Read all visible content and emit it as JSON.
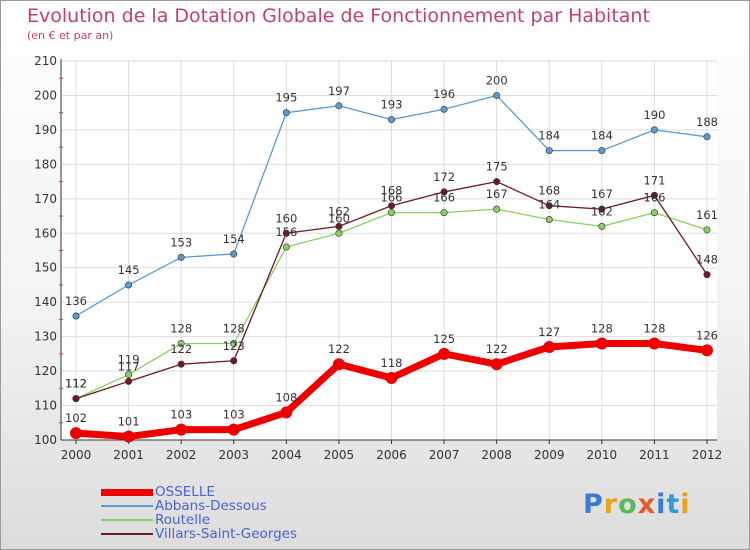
{
  "header": {
    "title": "Evolution de la Dotation Globale de Fonctionnement par Habitant",
    "subtitle": "(en € et par an)"
  },
  "logo": {
    "text": "Proxiti",
    "colors": [
      "#3a7bd5",
      "#e8a317",
      "#5cb85c",
      "#e55a2b",
      "#3a7bd5",
      "#2a9fd6",
      "#e8a317"
    ]
  },
  "chart_data": {
    "type": "line",
    "x": [
      "2000",
      "2001",
      "2002",
      "2003",
      "2004",
      "2005",
      "2006",
      "2007",
      "2008",
      "2009",
      "2010",
      "2011",
      "2012"
    ],
    "ylim": [
      100,
      210
    ],
    "yticks": [
      100,
      110,
      120,
      130,
      140,
      150,
      160,
      170,
      180,
      190,
      200,
      210
    ],
    "grid": true,
    "legend_position": "bottom-left",
    "series": [
      {
        "name": "OSSELLE",
        "color": "#ee0000",
        "values": [
          102,
          101,
          103,
          103,
          108,
          122,
          118,
          125,
          122,
          127,
          128,
          128,
          126
        ]
      },
      {
        "name": "Abbans-Dessous",
        "color": "#5a9bd4",
        "values": [
          136,
          145,
          153,
          154,
          195,
          197,
          193,
          196,
          200,
          184,
          184,
          190,
          188
        ]
      },
      {
        "name": "Routelle",
        "color": "#88d060",
        "values": [
          112,
          119,
          128,
          128,
          156,
          160,
          166,
          166,
          167,
          164,
          162,
          166,
          161
        ]
      },
      {
        "name": "Villars-Saint-Georges",
        "color": "#6e1a24",
        "values": [
          112,
          117,
          122,
          123,
          160,
          162,
          168,
          172,
          175,
          168,
          167,
          171,
          148
        ]
      }
    ]
  }
}
